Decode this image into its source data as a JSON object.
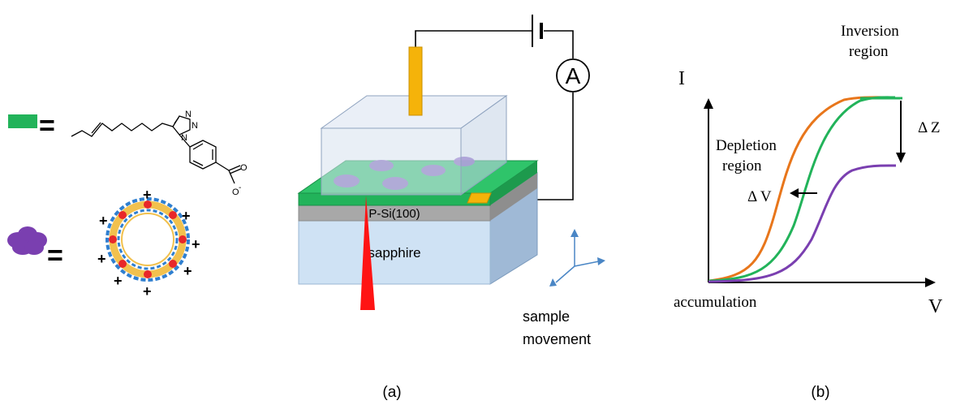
{
  "legend": {
    "equals": "=",
    "plus": "+",
    "molecule": {
      "n1": "N",
      "n2": "N",
      "n3": "N",
      "o1": "O",
      "o2": "O",
      "o2_charge": "-"
    }
  },
  "device": {
    "ammeter_label": "A",
    "substrate_label": "P-Si(100)",
    "base_label": "sapphire",
    "movement_line1": "sample",
    "movement_line2": "movement"
  },
  "graph": {
    "y_axis_label": "I",
    "x_axis_label": "V",
    "inversion_line1": "Inversion",
    "inversion_line2": "region",
    "depletion_line1": "Depletion",
    "depletion_line2": "region",
    "delta_v": "Δ V",
    "delta_z": "Δ Z",
    "accumulation": "accumulation",
    "colors": {
      "orange": "#e8761b",
      "green": "#22b35a",
      "purple": "#7a3fb0"
    }
  },
  "captions": {
    "a": "(a)",
    "b": "(b)"
  }
}
